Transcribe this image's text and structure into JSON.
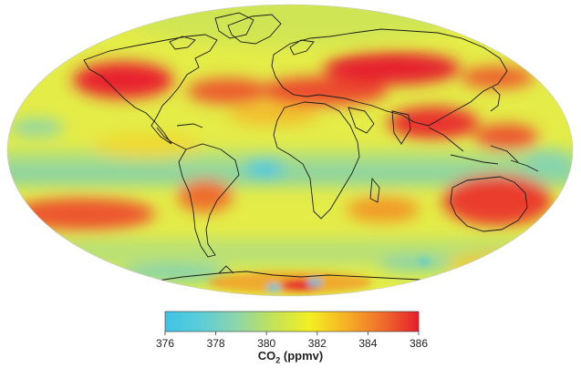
{
  "map": {
    "projection": "mollweide",
    "variable": "CO2",
    "units": "ppmv",
    "background": "#ffffff",
    "coastline_color": "#1a1a1a",
    "land_lowlight_color": "#f2f06a",
    "ocean_base_color": "#e9ef4e"
  },
  "colorbar": {
    "min": 376,
    "max": 386,
    "ticks": [
      "376",
      "378",
      "380",
      "382",
      "384",
      "386"
    ],
    "tick_values": [
      376,
      378,
      380,
      382,
      384,
      386
    ],
    "stops": [
      "#3fc4e6",
      "#5ccdd7",
      "#8fd6a8",
      "#c4e356",
      "#f3ef21",
      "#f6b125",
      "#ef6d2b",
      "#e51e2d"
    ],
    "label_main": "CO",
    "label_sub": "2",
    "label_units": " (ppmv)"
  }
}
